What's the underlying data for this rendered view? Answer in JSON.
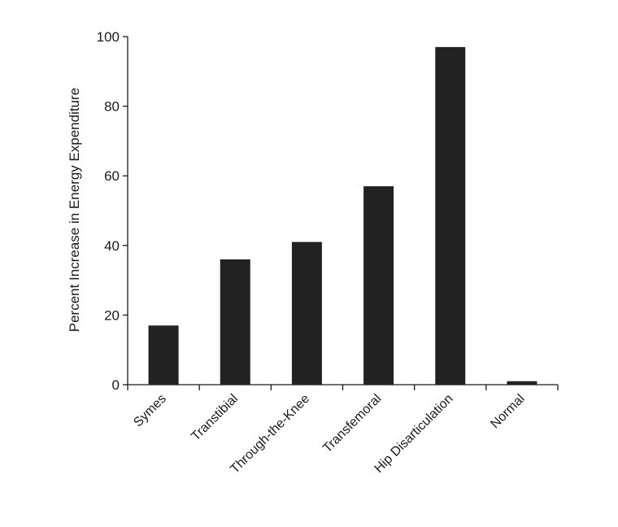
{
  "chart_data": {
    "type": "bar",
    "title": "",
    "xlabel": "",
    "ylabel": "Percent Increase in Energy Expenditure",
    "categories": [
      "Symes",
      "Transtibial",
      "Through-the-Knee",
      "Transfemoral",
      "Hip Disarticulation",
      "Normal"
    ],
    "values": [
      17,
      36,
      41,
      57,
      97,
      1
    ],
    "ylim": [
      0,
      100
    ],
    "yticks": [
      "0",
      "20",
      "40",
      "60",
      "80",
      "100"
    ],
    "grid": false,
    "legend": "none",
    "bar_color": "#222222"
  }
}
